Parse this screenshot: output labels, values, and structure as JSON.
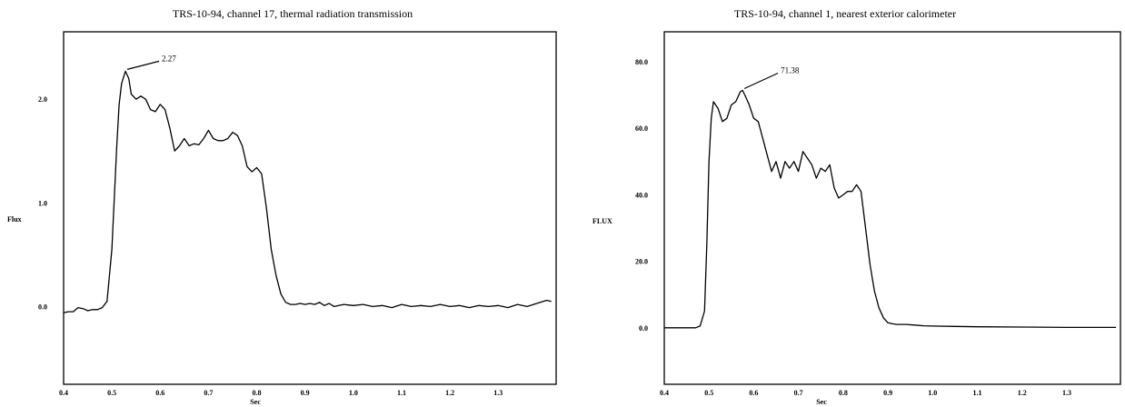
{
  "chart_data": [
    {
      "type": "line",
      "title": "TRS-10-94, channel 17, thermal radiation transmission",
      "xlabel": "Sec",
      "ylabel": "Flux",
      "xlim": [
        0.4,
        1.42
      ],
      "ylim": [
        -0.75,
        2.65
      ],
      "x_ticks": [
        "0.4",
        "0.5",
        "0.6",
        "0.7",
        "0.8",
        "0.9",
        "1.0",
        "1.1",
        "1.2",
        "1.3"
      ],
      "y_ticks": [
        "0.0",
        "1.0",
        "2.0"
      ],
      "grid": false,
      "annotation": {
        "text": "2.27",
        "x": 0.528,
        "y": 2.27
      },
      "series": [
        {
          "x": [
            0.4,
            0.41,
            0.42,
            0.43,
            0.44,
            0.45,
            0.46,
            0.47,
            0.48,
            0.49,
            0.5,
            0.51,
            0.515,
            0.52,
            0.528,
            0.535,
            0.54,
            0.55,
            0.56,
            0.57,
            0.58,
            0.59,
            0.6,
            0.61,
            0.62,
            0.63,
            0.64,
            0.65,
            0.66,
            0.67,
            0.68,
            0.69,
            0.7,
            0.71,
            0.72,
            0.73,
            0.74,
            0.75,
            0.76,
            0.77,
            0.78,
            0.79,
            0.8,
            0.81,
            0.82,
            0.83,
            0.84,
            0.85,
            0.86,
            0.87,
            0.88,
            0.89,
            0.9,
            0.91,
            0.92,
            0.93,
            0.94,
            0.95,
            0.96,
            0.98,
            1.0,
            1.02,
            1.04,
            1.06,
            1.08,
            1.1,
            1.12,
            1.14,
            1.16,
            1.18,
            1.2,
            1.22,
            1.24,
            1.26,
            1.28,
            1.3,
            1.32,
            1.34,
            1.36,
            1.38,
            1.4,
            1.41
          ],
          "y": [
            -0.06,
            -0.05,
            -0.05,
            -0.01,
            -0.02,
            -0.04,
            -0.03,
            -0.03,
            -0.01,
            0.05,
            0.55,
            1.55,
            1.95,
            2.15,
            2.27,
            2.2,
            2.05,
            2.0,
            2.03,
            2.0,
            1.9,
            1.88,
            1.95,
            1.9,
            1.72,
            1.5,
            1.55,
            1.62,
            1.55,
            1.57,
            1.56,
            1.62,
            1.7,
            1.62,
            1.6,
            1.6,
            1.62,
            1.68,
            1.65,
            1.55,
            1.35,
            1.3,
            1.34,
            1.28,
            0.95,
            0.55,
            0.3,
            0.12,
            0.04,
            0.02,
            0.02,
            0.03,
            0.02,
            0.03,
            0.02,
            0.04,
            0.01,
            0.03,
            0.0,
            0.02,
            0.01,
            0.02,
            0.0,
            0.01,
            -0.01,
            0.02,
            0.0,
            0.01,
            0.0,
            0.02,
            0.0,
            0.01,
            -0.01,
            0.01,
            0.0,
            0.01,
            -0.01,
            0.02,
            0.0,
            0.03,
            0.06,
            0.05
          ]
        }
      ]
    },
    {
      "type": "line",
      "title": "TRS-10-94, channel 1, nearest exterior calorimeter",
      "xlabel": "Sec",
      "ylabel": "FLUX",
      "xlim": [
        0.4,
        1.42
      ],
      "ylim": [
        -17,
        89
      ],
      "x_ticks": [
        "0.4",
        "0.5",
        "0.6",
        "0.7",
        "0.8",
        "0.9",
        "1.0",
        "1.1",
        "1.2",
        "1.3"
      ],
      "y_ticks": [
        "0.0",
        "20.0",
        "40.0",
        "60.0",
        "80.0"
      ],
      "grid": false,
      "annotation": {
        "text": "71.38",
        "x": 0.575,
        "y": 71.38
      },
      "series": [
        {
          "x": [
            0.4,
            0.42,
            0.44,
            0.46,
            0.47,
            0.48,
            0.49,
            0.495,
            0.5,
            0.505,
            0.51,
            0.52,
            0.53,
            0.54,
            0.55,
            0.56,
            0.57,
            0.575,
            0.58,
            0.59,
            0.6,
            0.61,
            0.62,
            0.63,
            0.64,
            0.65,
            0.66,
            0.67,
            0.68,
            0.69,
            0.7,
            0.71,
            0.72,
            0.73,
            0.74,
            0.75,
            0.76,
            0.77,
            0.78,
            0.79,
            0.8,
            0.81,
            0.82,
            0.83,
            0.84,
            0.85,
            0.86,
            0.87,
            0.88,
            0.89,
            0.9,
            0.91,
            0.92,
            0.93,
            0.94,
            0.96,
            0.98,
            1.0,
            1.05,
            1.1,
            1.2,
            1.3,
            1.41
          ],
          "y": [
            0.0,
            0.0,
            0.0,
            0.0,
            0.0,
            0.5,
            5.0,
            25.0,
            50.0,
            63.0,
            68.0,
            66.0,
            62.0,
            63.0,
            67.0,
            68.0,
            71.0,
            71.38,
            70.0,
            67.0,
            63.0,
            62.0,
            57.0,
            52.0,
            47.0,
            50.0,
            45.0,
            50.0,
            48.0,
            50.0,
            47.0,
            53.0,
            51.0,
            49.0,
            45.0,
            48.0,
            47.0,
            49.0,
            42.0,
            39.0,
            40.0,
            41.0,
            41.0,
            43.0,
            41.0,
            30.0,
            19.0,
            11.0,
            6.0,
            3.0,
            1.5,
            1.2,
            1.0,
            1.0,
            1.0,
            0.8,
            0.6,
            0.5,
            0.4,
            0.3,
            0.2,
            0.1,
            0.1
          ]
        }
      ]
    }
  ]
}
